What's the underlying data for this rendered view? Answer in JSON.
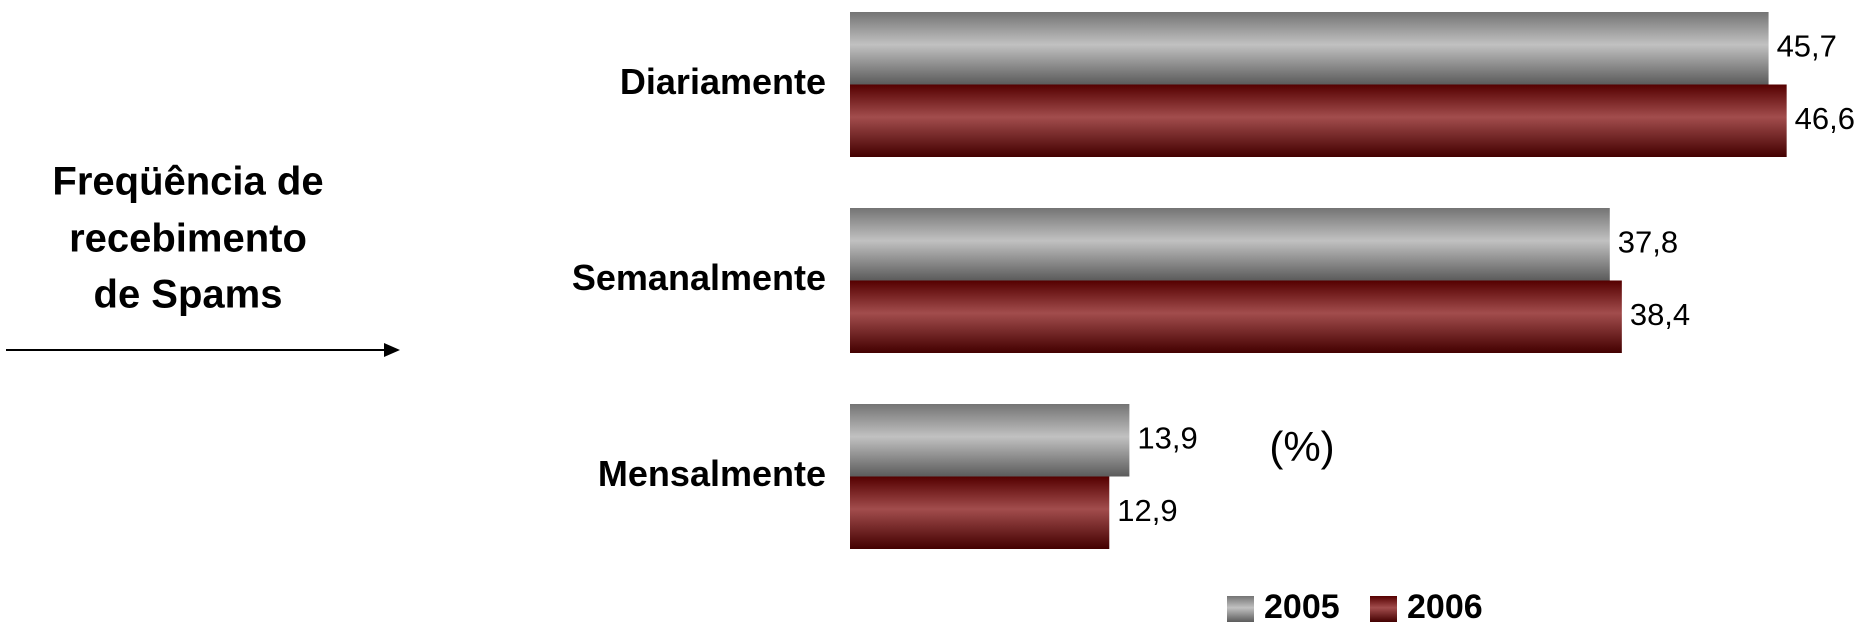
{
  "chart_data": {
    "type": "hbar",
    "side_label": [
      "Freqüência de",
      "recebimento",
      "de Spams"
    ],
    "unit_note": "(%)",
    "categories": [
      "Diariamente",
      "Semanalmente",
      "Mensalmente"
    ],
    "series": [
      {
        "name": "2005",
        "color": "#a6a6a6",
        "values": [
          45.7,
          37.8,
          13.9
        ],
        "value_labels": [
          "45,7",
          "37,8",
          "13,9"
        ]
      },
      {
        "name": "2006",
        "color": "#7a0000",
        "values": [
          46.6,
          38.4,
          12.9
        ],
        "value_labels": [
          "46,6",
          "38,4",
          "12,9"
        ]
      }
    ],
    "legend": "bottom"
  }
}
